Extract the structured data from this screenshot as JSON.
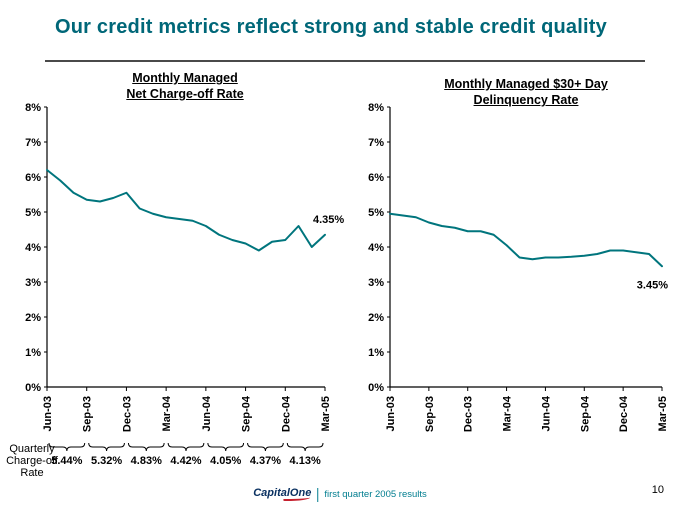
{
  "slide": {
    "title": "Our credit metrics reflect strong and stable credit quality",
    "page_number": "10",
    "footer": {
      "logo_text": "CapitalOne",
      "caption": "first quarter 2005 results"
    }
  },
  "colors": {
    "title": "#006778",
    "line": "#00757d",
    "logo_navy": "#0a3161",
    "logo_red": "#c5202e",
    "footer_teal": "#007d8f"
  },
  "quarterly_note": {
    "label_lines": [
      "Quarterly",
      "Charge-off",
      "Rate"
    ],
    "values": [
      "5.44%",
      "5.32%",
      "4.83%",
      "4.42%",
      "4.05%",
      "4.37%",
      "4.13%"
    ]
  },
  "chart_data": [
    {
      "type": "line",
      "title": "Monthly Managed Net Charge-off Rate",
      "title_lines": [
        "Monthly Managed",
        "Net Charge-off Rate"
      ],
      "x_unit": "month",
      "x_tick_labels": [
        "Jun-03",
        "Sep-03",
        "Dec-03",
        "Mar-04",
        "Jun-04",
        "Sep-04",
        "Dec-04",
        "Mar-05"
      ],
      "x_tick_indices": [
        0,
        3,
        6,
        9,
        12,
        15,
        18,
        21
      ],
      "y_ticks": [
        "8%",
        "7%",
        "6%",
        "5%",
        "4%",
        "3%",
        "2%",
        "1%",
        "0%"
      ],
      "ylim": [
        0,
        8
      ],
      "grid": false,
      "legend": "none",
      "values": [
        6.2,
        5.9,
        5.55,
        5.35,
        5.3,
        5.4,
        5.55,
        5.1,
        4.95,
        4.85,
        4.8,
        4.75,
        4.6,
        4.35,
        4.2,
        4.1,
        3.9,
        4.15,
        4.2,
        4.6,
        4.0,
        4.35
      ],
      "end_label": "4.35%",
      "end_label_position": "above",
      "line_color": "#00757d"
    },
    {
      "type": "line",
      "title": "Monthly Managed $30+ Day Delinquency Rate",
      "title_lines": [
        "Monthly Managed $30+ Day",
        "Delinquency Rate"
      ],
      "x_unit": "month",
      "x_tick_labels": [
        "Jun-03",
        "Sep-03",
        "Dec-03",
        "Mar-04",
        "Jun-04",
        "Sep-04",
        "Dec-04",
        "Mar-05"
      ],
      "x_tick_indices": [
        0,
        3,
        6,
        9,
        12,
        15,
        18,
        21
      ],
      "y_ticks": [
        "8%",
        "7%",
        "6%",
        "5%",
        "4%",
        "3%",
        "2%",
        "1%",
        "0%"
      ],
      "ylim": [
        0,
        8
      ],
      "grid": false,
      "legend": "none",
      "values": [
        4.95,
        4.9,
        4.85,
        4.7,
        4.6,
        4.55,
        4.45,
        4.45,
        4.35,
        4.05,
        3.7,
        3.65,
        3.7,
        3.7,
        3.72,
        3.75,
        3.8,
        3.9,
        3.9,
        3.85,
        3.8,
        3.45
      ],
      "end_label": "3.45%",
      "end_label_position": "below",
      "line_color": "#00757d"
    }
  ]
}
